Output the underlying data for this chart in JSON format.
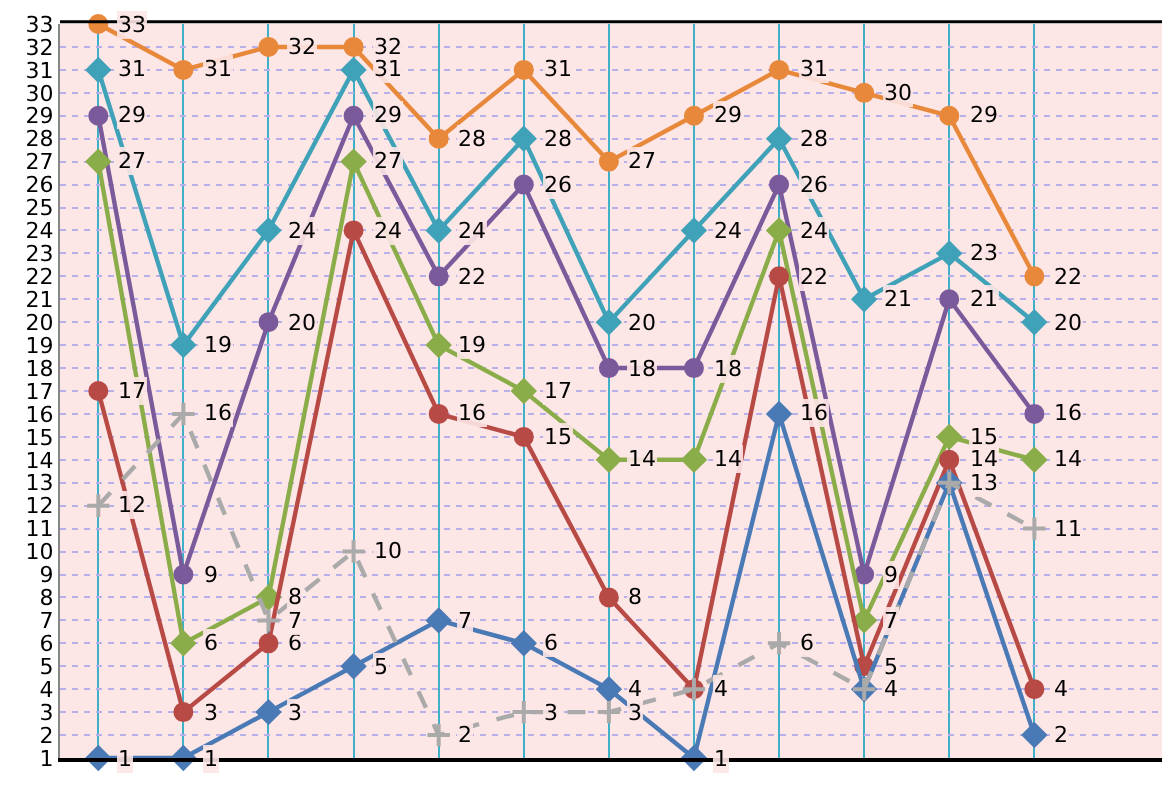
{
  "chart_data": {
    "type": "line",
    "categories": [
      null,
      null,
      null,
      null,
      null,
      null,
      null,
      null,
      null,
      null,
      null,
      null
    ],
    "series": [
      {
        "color": "#e8883a",
        "marker": "circle",
        "values": [
          33,
          31,
          32,
          32,
          28,
          31,
          27,
          29,
          31,
          30,
          29,
          22
        ],
        "value_labels": [
          "33",
          "31",
          "32",
          "32",
          "28",
          "31",
          "27",
          "29",
          "31",
          "30",
          "29",
          "22"
        ]
      },
      {
        "color": "#3fa2b8",
        "marker": "diamond",
        "values": [
          31,
          19,
          24,
          31,
          24,
          28,
          20,
          24,
          28,
          21,
          23,
          20
        ],
        "value_labels": [
          "31",
          "19",
          "24",
          "31",
          "24",
          "28",
          "20",
          "24",
          "28",
          "21",
          "23",
          "20"
        ]
      },
      {
        "color": "#7a5a9a",
        "marker": "circle",
        "values": [
          29,
          9,
          20,
          29,
          22,
          26,
          18,
          18,
          26,
          9,
          21,
          16
        ],
        "value_labels": [
          "29",
          "9",
          "20",
          "29",
          "22",
          "26",
          "18",
          "18",
          "26",
          "9",
          "21",
          "16"
        ]
      },
      {
        "color": "#8aad4a",
        "marker": "diamond",
        "values": [
          27,
          6,
          8,
          27,
          19,
          17,
          14,
          14,
          24,
          7,
          15,
          14
        ],
        "value_labels": [
          "27",
          "6",
          "8",
          "27",
          "19",
          "17",
          "14",
          "14",
          "24",
          "7",
          "15",
          "14"
        ]
      },
      {
        "color": "#b84a46",
        "marker": "circle",
        "values": [
          17,
          3,
          6,
          24,
          16,
          15,
          8,
          4,
          22,
          5,
          14,
          4
        ],
        "value_labels": [
          "17",
          "3",
          "6",
          "24",
          "16",
          "15",
          "8",
          "4",
          "22",
          "5",
          "14",
          "4"
        ]
      },
      {
        "color": "#4a7ab5",
        "marker": "diamond",
        "values": [
          1,
          1,
          3,
          5,
          7,
          6,
          4,
          1,
          16,
          4,
          13,
          2
        ],
        "value_labels": [
          "1",
          "1",
          "3",
          "5",
          "7",
          "6",
          "4",
          "1",
          "16",
          "4",
          "13",
          "2"
        ]
      },
      {
        "color": "#aaaaaa",
        "marker": "cross",
        "line_style": "dashed",
        "values": [
          12,
          16,
          7,
          10,
          2,
          3,
          3,
          4,
          6,
          4,
          13,
          11
        ],
        "value_labels": [
          "12",
          "16",
          "7",
          "10",
          "2",
          "3",
          "3",
          null,
          "6",
          null,
          null,
          "11"
        ]
      }
    ],
    "ylim": [
      1,
      33
    ],
    "yticks": [
      1,
      2,
      3,
      4,
      5,
      6,
      7,
      8,
      9,
      10,
      11,
      12,
      13,
      14,
      15,
      16,
      17,
      18,
      19,
      20,
      21,
      22,
      23,
      24,
      25,
      26,
      27,
      28,
      29,
      30,
      31,
      32,
      33
    ],
    "grid": true,
    "line_style": "solid",
    "tick_labels": "y"
  }
}
